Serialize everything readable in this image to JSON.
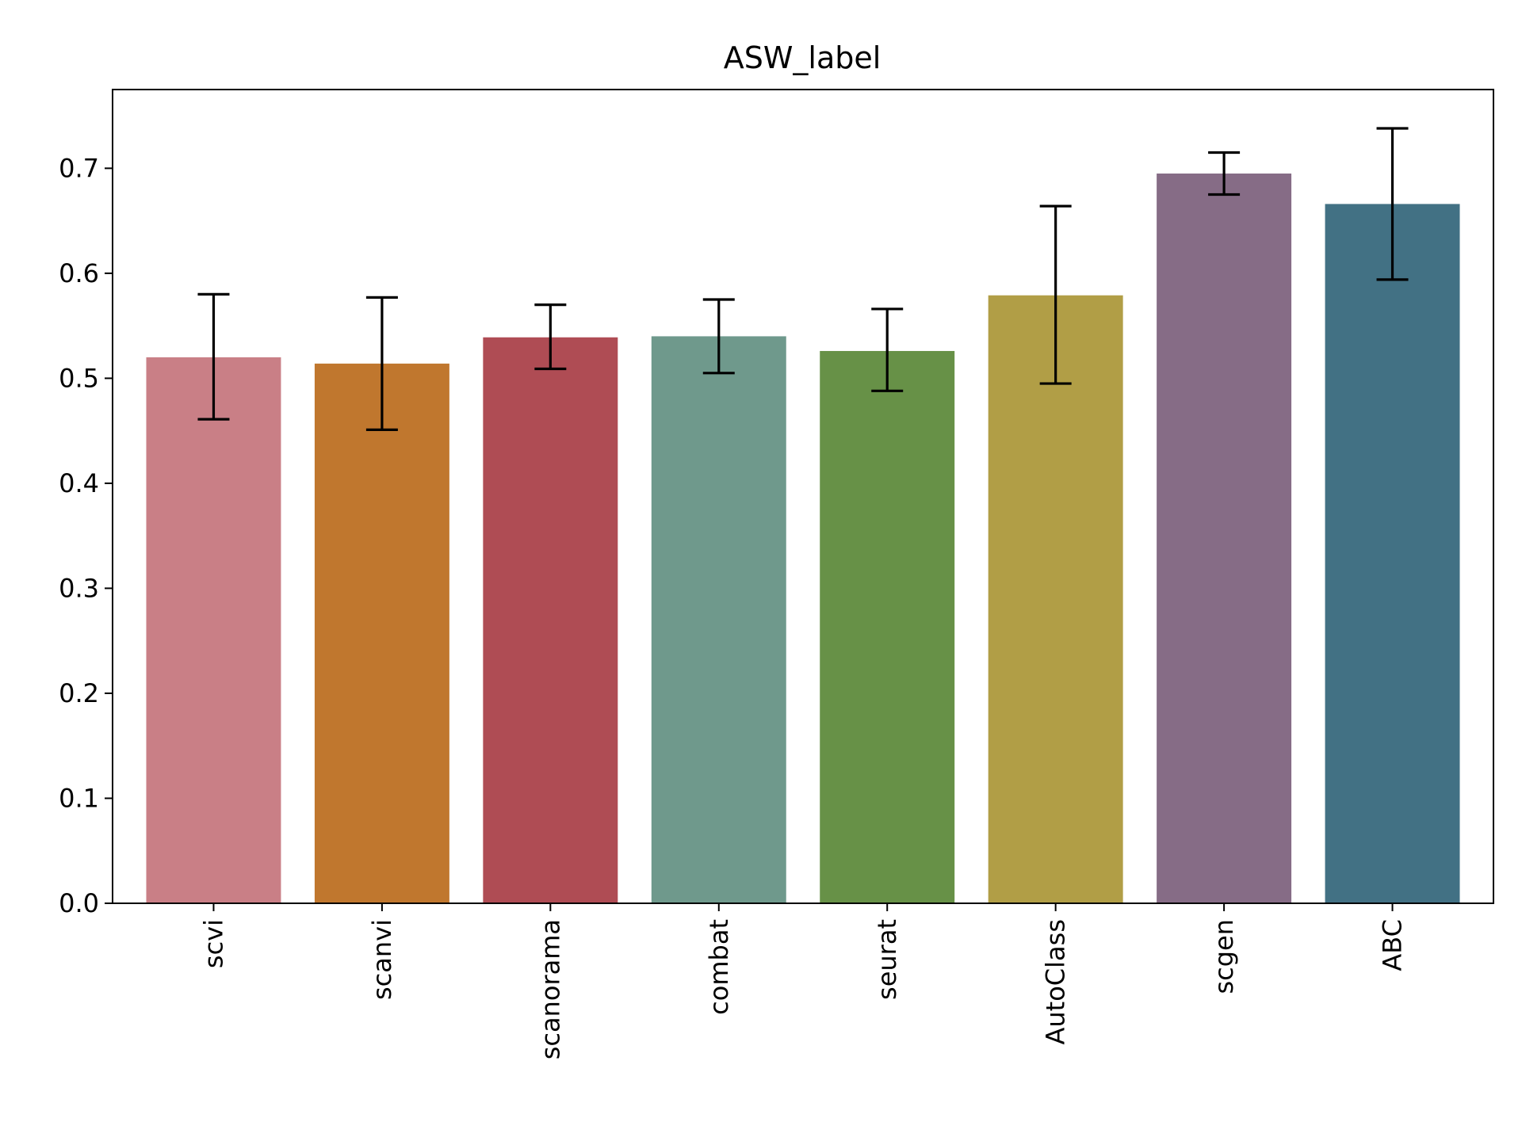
{
  "chart_data": {
    "type": "bar",
    "title": "ASW_label",
    "xlabel": "",
    "ylabel": "",
    "categories": [
      "scvi",
      "scanvi",
      "scanorama",
      "combat",
      "seurat",
      "AutoClass",
      "scgen",
      "ABC"
    ],
    "values": [
      0.52,
      0.514,
      0.539,
      0.54,
      0.526,
      0.579,
      0.695,
      0.666
    ],
    "error_low": [
      0.461,
      0.451,
      0.509,
      0.505,
      0.488,
      0.495,
      0.675,
      0.594
    ],
    "error_high": [
      0.58,
      0.577,
      0.57,
      0.575,
      0.566,
      0.664,
      0.715,
      0.738
    ],
    "colors": [
      "#c97f86",
      "#c0772e",
      "#af4c54",
      "#6f998c",
      "#679147",
      "#b19e46",
      "#866c86",
      "#427184"
    ],
    "ylim": [
      0,
      0.775
    ],
    "yticks": [
      0.0,
      0.1,
      0.2,
      0.3,
      0.4,
      0.5,
      0.6,
      0.7
    ],
    "ytick_labels": [
      "0.0",
      "0.1",
      "0.2",
      "0.3",
      "0.4",
      "0.5",
      "0.6",
      "0.7"
    ],
    "grid": false,
    "legend": "none"
  }
}
